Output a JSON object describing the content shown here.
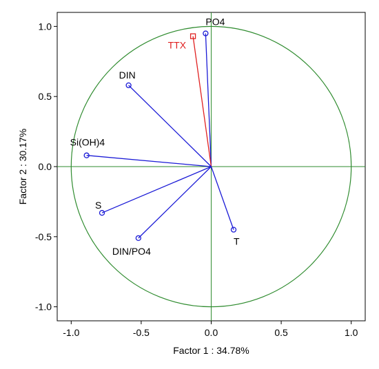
{
  "chart_data": {
    "type": "scatter",
    "subtype": "pca-loading-plot",
    "xlabel": "Factor 1 : 34.78%",
    "ylabel": "Factor 2 : 30.17%",
    "xlim": [
      -1.1,
      1.1
    ],
    "ylim": [
      -1.1,
      1.1
    ],
    "x_ticks": [
      -1.0,
      -0.5,
      0.0,
      0.5,
      1.0
    ],
    "y_ticks": [
      -1.0,
      -0.5,
      0.0,
      0.5,
      1.0
    ],
    "x_tick_labels": [
      "-1.0",
      "-0.5",
      "0.0",
      "0.5",
      "1.0"
    ],
    "y_tick_labels": [
      "-1.0",
      "-0.5",
      "0.0",
      "0.5",
      "1.0"
    ],
    "unit_circle": true,
    "grid": false,
    "points": [
      {
        "label": "PO4",
        "x": -0.04,
        "y": 0.95,
        "marker": "circle",
        "color": "#1a1ad6"
      },
      {
        "label": "TTX",
        "x": -0.13,
        "y": 0.93,
        "marker": "square",
        "color": "#e02020"
      },
      {
        "label": "DIN",
        "x": -0.59,
        "y": 0.58,
        "marker": "circle",
        "color": "#1a1ad6"
      },
      {
        "label": "Si(OH)4",
        "x": -0.89,
        "y": 0.08,
        "marker": "circle",
        "color": "#1a1ad6"
      },
      {
        "label": "S",
        "x": -0.78,
        "y": -0.33,
        "marker": "circle",
        "color": "#1a1ad6"
      },
      {
        "label": "DIN/PO4",
        "x": -0.52,
        "y": -0.51,
        "marker": "circle",
        "color": "#1a1ad6"
      },
      {
        "label": "T",
        "x": 0.16,
        "y": -0.45,
        "marker": "circle",
        "color": "#1a1ad6"
      }
    ],
    "colors": {
      "circle": "#2e8b2e",
      "axes": "#2e8b2e",
      "vector": "#1a1ad6",
      "highlight": "#e02020",
      "frame": "#000000"
    }
  }
}
